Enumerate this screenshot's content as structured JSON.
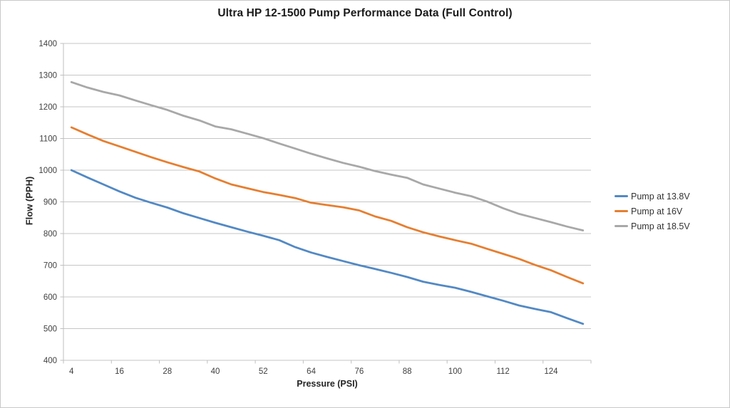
{
  "chart_data": {
    "type": "line",
    "title": "Ultra HP 12-1500 Pump Performance Data (Full Control)",
    "xlabel": "Pressure (PSI)",
    "ylabel": "Flow (PPH)",
    "x": [
      4,
      8,
      12,
      16,
      20,
      24,
      28,
      32,
      36,
      40,
      44,
      48,
      52,
      56,
      60,
      64,
      68,
      72,
      76,
      80,
      84,
      88,
      92,
      96,
      100,
      104,
      108,
      112,
      116,
      120,
      124,
      128,
      132
    ],
    "x_tick_labels": [
      "4",
      "16",
      "28",
      "40",
      "52",
      "64",
      "76",
      "88",
      "100",
      "112",
      "124"
    ],
    "x_tick_indices": [
      0,
      3,
      6,
      9,
      12,
      15,
      18,
      21,
      24,
      27,
      30
    ],
    "ylim": [
      400,
      1400
    ],
    "ytick_step": 100,
    "grid": "horizontal",
    "legend_position": "right",
    "series": [
      {
        "name": "Pump at 13.8V",
        "color": "#5289C4",
        "values": [
          1000,
          977,
          955,
          933,
          913,
          897,
          882,
          864,
          849,
          834,
          820,
          806,
          793,
          779,
          757,
          740,
          726,
          713,
          700,
          688,
          676,
          663,
          648,
          638,
          629,
          616,
          602,
          588,
          573,
          562,
          552,
          533,
          515
        ]
      },
      {
        "name": "Pump at 16V",
        "color": "#E67E30",
        "values": [
          1135,
          1113,
          1092,
          1075,
          1058,
          1041,
          1025,
          1010,
          996,
          974,
          955,
          943,
          931,
          922,
          912,
          897,
          890,
          883,
          873,
          854,
          840,
          820,
          804,
          791,
          779,
          768,
          752,
          736,
          720,
          701,
          684,
          663,
          643
        ]
      },
      {
        "name": "Pump at 18.5V",
        "color": "#A8A8A8",
        "values": [
          1278,
          1261,
          1247,
          1236,
          1220,
          1205,
          1190,
          1172,
          1157,
          1138,
          1129,
          1115,
          1101,
          1084,
          1068,
          1052,
          1037,
          1023,
          1011,
          997,
          986,
          976,
          955,
          942,
          929,
          918,
          901,
          880,
          862,
          849,
          836,
          822,
          810
        ]
      }
    ]
  },
  "colors": {
    "gridline": "#C6C6C6",
    "axis": "#BFBFBF",
    "tick_text": "#404040",
    "title_text": "#1A1A1A",
    "border": "#C9C9C9",
    "background": "#FFFFFF"
  }
}
